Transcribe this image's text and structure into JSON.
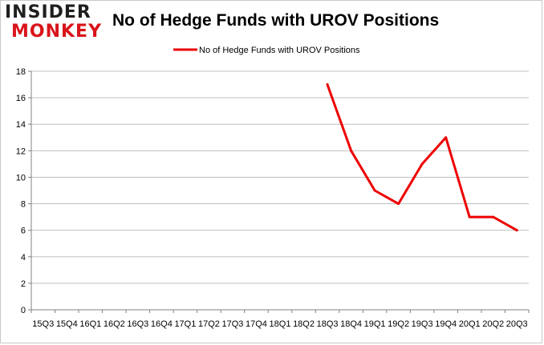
{
  "logo": {
    "line1": "INSIDER",
    "line2": "MONKEY"
  },
  "chart_data": {
    "type": "line",
    "title": "No of Hedge Funds with UROV Positions",
    "xlabel": "",
    "ylabel": "",
    "legend_position": "top-center",
    "grid": true,
    "ylim": [
      0,
      18
    ],
    "yticks": [
      0,
      2,
      4,
      6,
      8,
      10,
      12,
      14,
      16,
      18
    ],
    "categories": [
      "15Q3",
      "15Q4",
      "16Q1",
      "16Q2",
      "16Q3",
      "16Q4",
      "17Q1",
      "17Q2",
      "17Q3",
      "17Q4",
      "18Q1",
      "18Q2",
      "18Q3",
      "18Q4",
      "19Q1",
      "19Q2",
      "19Q3",
      "19Q4",
      "20Q1",
      "20Q2",
      "20Q3"
    ],
    "series": [
      {
        "name": "No of Hedge Funds with UROV Positions",
        "color": "#ee0000",
        "values": [
          null,
          null,
          null,
          null,
          null,
          null,
          null,
          null,
          null,
          null,
          null,
          null,
          17,
          12,
          9,
          8,
          11,
          13,
          7,
          7,
          6
        ]
      }
    ]
  }
}
